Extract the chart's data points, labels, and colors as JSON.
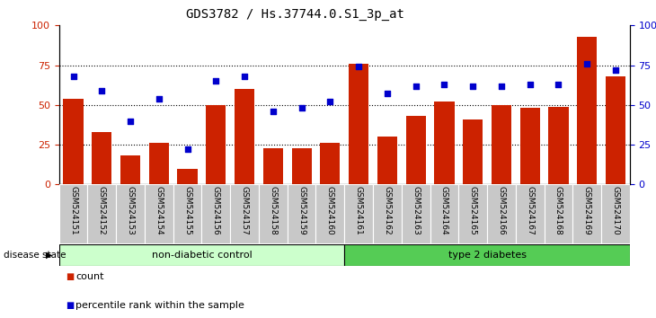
{
  "title": "GDS3782 / Hs.37744.0.S1_3p_at",
  "samples": [
    "GSM524151",
    "GSM524152",
    "GSM524153",
    "GSM524154",
    "GSM524155",
    "GSM524156",
    "GSM524157",
    "GSM524158",
    "GSM524159",
    "GSM524160",
    "GSM524161",
    "GSM524162",
    "GSM524163",
    "GSM524164",
    "GSM524165",
    "GSM524166",
    "GSM524167",
    "GSM524168",
    "GSM524169",
    "GSM524170"
  ],
  "counts": [
    54,
    33,
    18,
    26,
    10,
    50,
    60,
    23,
    23,
    26,
    76,
    30,
    43,
    52,
    41,
    50,
    48,
    49,
    93,
    68
  ],
  "percentile": [
    68,
    59,
    40,
    54,
    22,
    65,
    68,
    46,
    48,
    52,
    74,
    57,
    62,
    63,
    62,
    62,
    63,
    63,
    76,
    72
  ],
  "non_diabetic_count": 10,
  "type2_count": 10,
  "bar_color": "#cc2200",
  "dot_color": "#0000cc",
  "non_diabetic_label": "non-diabetic control",
  "type2_label": "type 2 diabetes",
  "disease_state_label": "disease state",
  "count_legend": "count",
  "percentile_legend": "percentile rank within the sample",
  "ylim_left": [
    0,
    100
  ],
  "ylim_right": [
    0,
    100
  ],
  "yticks_left": [
    0,
    25,
    50,
    75,
    100
  ],
  "yticks_right": [
    0,
    25,
    50,
    75,
    100
  ],
  "bg_color": "#ffffff",
  "plot_bg_color": "#ffffff",
  "tick_label_bg": "#c8c8c8",
  "non_diabetic_bg": "#ccffcc",
  "type2_bg": "#55cc55",
  "title_fontsize": 10,
  "tick_fontsize": 6.5,
  "axis_fontsize": 8,
  "legend_fontsize": 8
}
